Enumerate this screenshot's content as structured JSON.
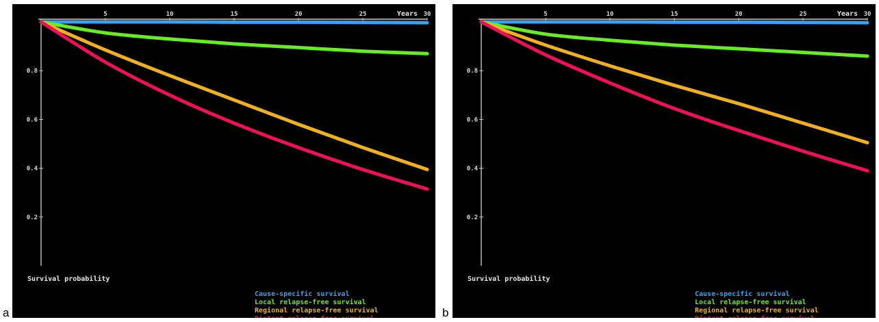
{
  "panels": [
    {
      "letter": "a"
    },
    {
      "letter": "b"
    }
  ],
  "chart_data": [
    {
      "type": "line",
      "panel": "a",
      "title": "",
      "xlabel": "Years",
      "ylabel": "Survival probability",
      "xlim": [
        0,
        30
      ],
      "ylim": [
        0,
        1
      ],
      "x_ticks": [
        5,
        10,
        15,
        20,
        25,
        30
      ],
      "y_ticks": [
        0.2,
        0.4,
        0.6,
        0.8
      ],
      "x_tick_labels": [
        "5",
        "10",
        "15",
        "20",
        "25",
        "30"
      ],
      "y_tick_labels": [
        "0.2",
        "0.4",
        "0.6",
        "0.8"
      ],
      "grid": false,
      "legend_position": "bottom-right",
      "series": [
        {
          "name": "Cause-specific survival",
          "color": "#3aa0f0",
          "x": [
            0,
            5,
            10,
            15,
            20,
            25,
            30
          ],
          "y": [
            1.0,
            1.0,
            1.0,
            0.999,
            0.999,
            0.998,
            0.997
          ]
        },
        {
          "name": "Local relapse-free survival",
          "color": "#66ee22",
          "x": [
            0,
            5,
            10,
            15,
            20,
            25,
            30
          ],
          "y": [
            1.0,
            0.955,
            0.93,
            0.91,
            0.895,
            0.88,
            0.87
          ]
        },
        {
          "name": "Regional relapse-free survival",
          "color": "#f0b020",
          "x": [
            0,
            5,
            10,
            15,
            20,
            25,
            30
          ],
          "y": [
            1.0,
            0.885,
            0.78,
            0.68,
            0.58,
            0.485,
            0.395
          ]
        },
        {
          "name": "Distant relapse-free survival",
          "color": "#ee1155",
          "x": [
            0,
            5,
            10,
            15,
            20,
            25,
            30
          ],
          "y": [
            1.0,
            0.835,
            0.7,
            0.585,
            0.485,
            0.395,
            0.315
          ]
        }
      ]
    },
    {
      "type": "line",
      "panel": "b",
      "title": "",
      "xlabel": "Years",
      "ylabel": "Survival probability",
      "xlim": [
        0,
        30
      ],
      "ylim": [
        0,
        1
      ],
      "x_ticks": [
        5,
        10,
        15,
        20,
        25,
        30
      ],
      "y_ticks": [
        0.2,
        0.4,
        0.6,
        0.8
      ],
      "x_tick_labels": [
        "5",
        "10",
        "15",
        "20",
        "25",
        "30"
      ],
      "y_tick_labels": [
        "0.2",
        "0.4",
        "0.6",
        "0.8"
      ],
      "grid": false,
      "legend_position": "bottom-right",
      "series": [
        {
          "name": "Cause-specific survival",
          "color": "#3aa0f0",
          "x": [
            0,
            5,
            10,
            15,
            20,
            25,
            30
          ],
          "y": [
            1.0,
            1.0,
            1.0,
            0.999,
            0.999,
            0.998,
            0.997
          ]
        },
        {
          "name": "Local relapse-free survival",
          "color": "#66ee22",
          "x": [
            0,
            5,
            10,
            15,
            20,
            25,
            30
          ],
          "y": [
            1.0,
            0.95,
            0.925,
            0.905,
            0.89,
            0.875,
            0.86
          ]
        },
        {
          "name": "Regional relapse-free survival",
          "color": "#f0b020",
          "x": [
            0,
            5,
            10,
            15,
            20,
            25,
            30
          ],
          "y": [
            1.0,
            0.905,
            0.82,
            0.74,
            0.665,
            0.585,
            0.505
          ]
        },
        {
          "name": "Distant relapse-free survival",
          "color": "#ee1155",
          "x": [
            0,
            5,
            10,
            15,
            20,
            25,
            30
          ],
          "y": [
            1.0,
            0.865,
            0.75,
            0.645,
            0.555,
            0.47,
            0.39
          ]
        }
      ]
    }
  ]
}
